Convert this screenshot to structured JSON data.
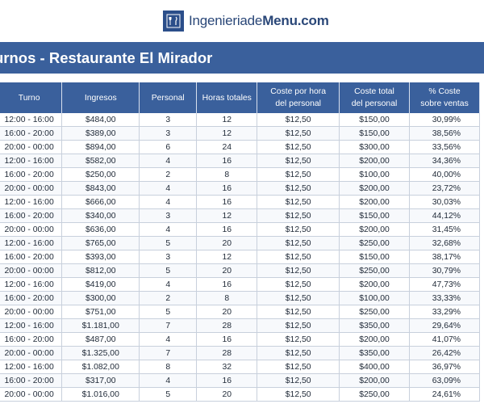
{
  "logo": {
    "icon": "restaurant-menu-icon",
    "prefix": "Ingenieriade",
    "bold": "Menu",
    "suffix": ".com"
  },
  "title": "urnos - Restaurante El Mirador",
  "headers": [
    [
      "Turno"
    ],
    [
      "Ingresos"
    ],
    [
      "Personal"
    ],
    [
      "Horas totales"
    ],
    [
      "Coste por hora",
      "del personal"
    ],
    [
      "Coste total",
      "del personal"
    ],
    [
      "% Coste",
      "sobre ventas"
    ]
  ],
  "rows": [
    [
      "12:00 - 16:00",
      "$484,00",
      "3",
      "12",
      "$12,50",
      "$150,00",
      "30,99%"
    ],
    [
      "16:00 - 20:00",
      "$389,00",
      "3",
      "12",
      "$12,50",
      "$150,00",
      "38,56%"
    ],
    [
      "20:00 - 00:00",
      "$894,00",
      "6",
      "24",
      "$12,50",
      "$300,00",
      "33,56%"
    ],
    [
      "12:00 - 16:00",
      "$582,00",
      "4",
      "16",
      "$12,50",
      "$200,00",
      "34,36%"
    ],
    [
      "16:00 - 20:00",
      "$250,00",
      "2",
      "8",
      "$12,50",
      "$100,00",
      "40,00%"
    ],
    [
      "20:00 - 00:00",
      "$843,00",
      "4",
      "16",
      "$12,50",
      "$200,00",
      "23,72%"
    ],
    [
      "12:00 - 16:00",
      "$666,00",
      "4",
      "16",
      "$12,50",
      "$200,00",
      "30,03%"
    ],
    [
      "16:00 - 20:00",
      "$340,00",
      "3",
      "12",
      "$12,50",
      "$150,00",
      "44,12%"
    ],
    [
      "20:00 - 00:00",
      "$636,00",
      "4",
      "16",
      "$12,50",
      "$200,00",
      "31,45%"
    ],
    [
      "12:00 - 16:00",
      "$765,00",
      "5",
      "20",
      "$12,50",
      "$250,00",
      "32,68%"
    ],
    [
      "16:00 - 20:00",
      "$393,00",
      "3",
      "12",
      "$12,50",
      "$150,00",
      "38,17%"
    ],
    [
      "20:00 - 00:00",
      "$812,00",
      "5",
      "20",
      "$12,50",
      "$250,00",
      "30,79%"
    ],
    [
      "12:00 - 16:00",
      "$419,00",
      "4",
      "16",
      "$12,50",
      "$200,00",
      "47,73%"
    ],
    [
      "16:00 - 20:00",
      "$300,00",
      "2",
      "8",
      "$12,50",
      "$100,00",
      "33,33%"
    ],
    [
      "20:00 - 00:00",
      "$751,00",
      "5",
      "20",
      "$12,50",
      "$250,00",
      "33,29%"
    ],
    [
      "12:00 - 16:00",
      "$1.181,00",
      "7",
      "28",
      "$12,50",
      "$350,00",
      "29,64%"
    ],
    [
      "16:00 - 20:00",
      "$487,00",
      "4",
      "16",
      "$12,50",
      "$200,00",
      "41,07%"
    ],
    [
      "20:00 - 00:00",
      "$1.325,00",
      "7",
      "28",
      "$12,50",
      "$350,00",
      "26,42%"
    ],
    [
      "12:00 - 16:00",
      "$1.082,00",
      "8",
      "32",
      "$12,50",
      "$400,00",
      "36,97%"
    ],
    [
      "16:00 - 20:00",
      "$317,00",
      "4",
      "16",
      "$12,50",
      "$200,00",
      "63,09%"
    ],
    [
      "20:00 - 00:00",
      "$1.016,00",
      "5",
      "20",
      "$12,50",
      "$250,00",
      "24,61%"
    ]
  ]
}
